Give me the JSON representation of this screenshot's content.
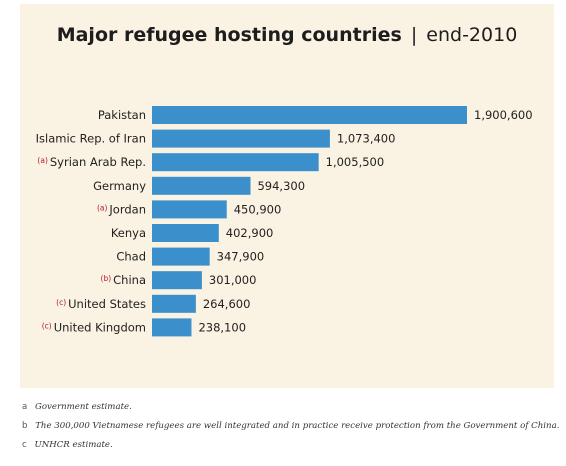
{
  "title": {
    "main": "Major refugee hosting countries",
    "separator": "|",
    "sub": "end-2010"
  },
  "chart_data": {
    "type": "bar",
    "orientation": "horizontal",
    "title": "Major refugee hosting countries | end-2010",
    "categories": [
      "Pakistan",
      "Islamic Rep. of Iran",
      "Syrian Arab Rep.",
      "Germany",
      "Jordan",
      "Kenya",
      "Chad",
      "China",
      "United States",
      "United Kingdom"
    ],
    "category_notes": [
      "",
      "",
      "(a)",
      "",
      "(a)",
      "",
      "",
      "(b)",
      "(c)",
      "(c)"
    ],
    "values": [
      1900600,
      1073400,
      1005500,
      594300,
      450900,
      402900,
      347900,
      301000,
      264600,
      238100
    ],
    "value_labels": [
      "1,900,600",
      "1,073,400",
      "1,005,500",
      "594,300",
      "450,900",
      "402,900",
      "347,900",
      "301,000",
      "264,600",
      "238,100"
    ],
    "xlabel": "",
    "ylabel": "",
    "xlim": [
      0,
      1900600
    ],
    "grid": false,
    "legend": "none",
    "bar_color": "#3b8fca",
    "note_color": "#b0202a"
  },
  "footnotes": [
    {
      "letter": "a",
      "text": "Government estimate."
    },
    {
      "letter": "b",
      "text": "The 300,000 Vietnamese refugees are well integrated and in practice receive protection from the Government of China."
    },
    {
      "letter": "c",
      "text": "UNHCR estimate."
    }
  ]
}
